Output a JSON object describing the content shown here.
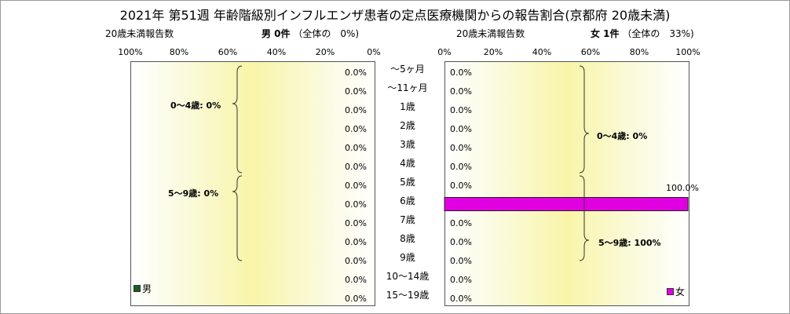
{
  "title": "2021年 第51週 年齢階級別インフルエンザ患者の定点医療機関からの報告割合(京都府 20歳未満)",
  "left": {
    "caption": "20歳未満報告数",
    "header_bold": "男 0件",
    "header_rest": "（全体の　0%)",
    "ticks": [
      "100%",
      "80%",
      "60%",
      "40%",
      "20%",
      "0%"
    ],
    "legend": "男",
    "color": "#1b5e20",
    "brace1": "0～4歳: 0%",
    "brace2": "5～9歳: 0%"
  },
  "right": {
    "caption": "20歳未満報告数",
    "header_bold": "女 1件",
    "header_rest": "（全体の　33%)",
    "ticks": [
      "0%",
      "20%",
      "40%",
      "60%",
      "80%",
      "100%"
    ],
    "legend": "女",
    "color": "#e000e0",
    "brace1": "0～4歳: 0%",
    "brace2": "5～9歳: 100%"
  },
  "ages": [
    "～5ヶ月",
    "～11ヶ月",
    "1歳",
    "2歳",
    "3歳",
    "4歳",
    "5歳",
    "6歳",
    "7歳",
    "8歳",
    "9歳",
    "10～14歳",
    "15～19歳"
  ],
  "chart_data": {
    "type": "bar",
    "title": "2021年 第51週 年齢階級別インフルエンザ患者の定点医療機関からの報告割合(京都府 20歳未満)",
    "categories": [
      "～5ヶ月",
      "～11ヶ月",
      "1歳",
      "2歳",
      "3歳",
      "4歳",
      "5歳",
      "6歳",
      "7歳",
      "8歳",
      "9歳",
      "10～14歳",
      "15～19歳"
    ],
    "xlim": [
      0,
      100
    ],
    "series": [
      {
        "name": "男",
        "values": [
          0,
          0,
          0,
          0,
          0,
          0,
          0,
          0,
          0,
          0,
          0,
          0,
          0
        ],
        "labels": [
          "0.0%",
          "0.0%",
          "0.0%",
          "0.0%",
          "0.0%",
          "0.0%",
          "0.0%",
          "0.0%",
          "0.0%",
          "0.0%",
          "0.0%",
          "0.0%",
          "0.0%"
        ]
      },
      {
        "name": "女",
        "values": [
          0,
          0,
          0,
          0,
          0,
          0,
          0,
          100,
          0,
          0,
          0,
          0,
          0
        ],
        "labels": [
          "0.0%",
          "0.0%",
          "0.0%",
          "0.0%",
          "0.0%",
          "0.0%",
          "0.0%",
          "100.0%",
          "0.0%",
          "0.0%",
          "0.0%",
          "0.0%",
          "0.0%"
        ]
      }
    ]
  }
}
